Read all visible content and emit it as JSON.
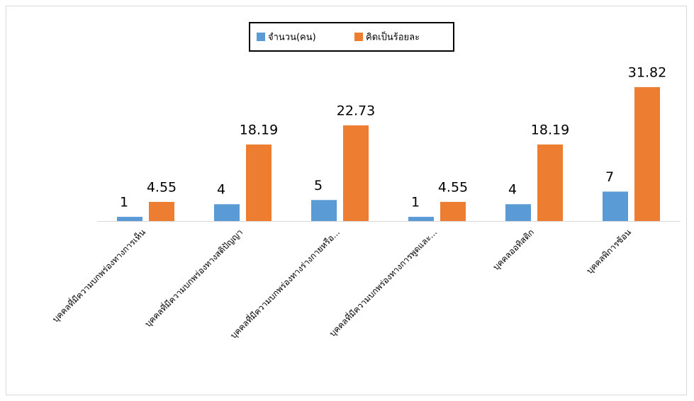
{
  "chart_data": {
    "type": "bar",
    "categories": [
      "บุคคลที่มีความบกพร่องทางการเห็น",
      "บุคคลที่มีความบกพร่องทางสติปัญญา",
      "บุคคลที่มีความบกพร่องทางร่างกายหรือ...",
      "บุคคลที่มีความบกพร่องทางการพูดและ...",
      "บุคคลออทิสติก",
      "บุคคลพิการซ้อน"
    ],
    "series": [
      {
        "name": "จำนวน(คน)",
        "color": "#5b9bd5",
        "values": [
          1,
          4,
          5,
          1,
          4,
          7
        ]
      },
      {
        "name": "คิดเป็นร้อยละ",
        "color": "#ed7d31",
        "values": [
          4.55,
          18.19,
          22.73,
          4.55,
          18.19,
          31.82
        ]
      }
    ],
    "legend": "top",
    "data_labels": true
  }
}
